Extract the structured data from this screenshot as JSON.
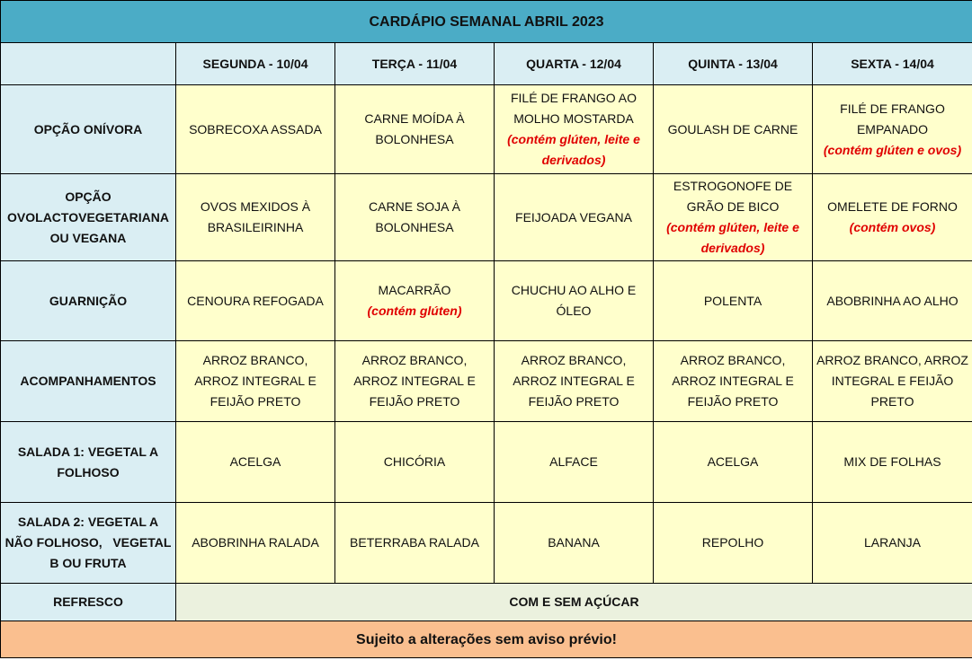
{
  "title": "CARDÁPIO SEMANAL ABRIL 2023",
  "days": [
    "SEGUNDA - 10/04",
    "TERÇA - 11/04",
    "QUARTA - 12/04",
    "QUINTA - 13/04",
    "SEXTA - 14/04"
  ],
  "rows": [
    {
      "label": "OPÇÃO ONÍVORA",
      "cells": [
        {
          "text": "SOBRECOXA ASSADA",
          "note": ""
        },
        {
          "text": "CARNE MOÍDA À BOLONHESA",
          "note": ""
        },
        {
          "text": "FILÉ DE FRANGO AO MOLHO MOSTARDA",
          "note": "(contém glúten, leite e derivados)"
        },
        {
          "text": "GOULASH DE CARNE",
          "note": ""
        },
        {
          "text": "FILÉ DE FRANGO EMPANADO",
          "note": "(contém glúten e ovos)"
        }
      ]
    },
    {
      "label": "OPÇÃO OVOLACTOVEGETARIANA OU VEGANA",
      "cells": [
        {
          "text": "OVOS MEXIDOS À BRASILEIRINHA",
          "note": ""
        },
        {
          "text": "CARNE SOJA À BOLONHESA",
          "note": ""
        },
        {
          "text": "FEIJOADA VEGANA",
          "note": ""
        },
        {
          "text": "ESTROGONOFE DE GRÃO DE BICO",
          "note": "(contém glúten, leite e derivados)"
        },
        {
          "text": "OMELETE DE FORNO",
          "note": "(contém ovos)"
        }
      ]
    },
    {
      "label": "GUARNIÇÃO",
      "cells": [
        {
          "text": "CENOURA REFOGADA",
          "note": ""
        },
        {
          "text": "MACARRÃO",
          "note": "(contém glúten)"
        },
        {
          "text": "CHUCHU AO ALHO E ÓLEO",
          "note": ""
        },
        {
          "text": "POLENTA",
          "note": ""
        },
        {
          "text": "ABOBRINHA AO ALHO",
          "note": ""
        }
      ]
    },
    {
      "label": "ACOMPANHAMENTOS",
      "cells": [
        {
          "text": "ARROZ BRANCO, ARROZ INTEGRAL E FEIJÃO PRETO",
          "note": ""
        },
        {
          "text": "ARROZ BRANCO, ARROZ INTEGRAL E FEIJÃO PRETO",
          "note": ""
        },
        {
          "text": "ARROZ BRANCO, ARROZ INTEGRAL E FEIJÃO PRETO",
          "note": ""
        },
        {
          "text": "ARROZ BRANCO, ARROZ INTEGRAL E FEIJÃO PRETO",
          "note": ""
        },
        {
          "text": "ARROZ BRANCO, ARROZ INTEGRAL E FEIJÃO PRETO",
          "note": ""
        }
      ]
    },
    {
      "label": "SALADA 1: VEGETAL A FOLHOSO",
      "cells": [
        {
          "text": "ACELGA",
          "note": ""
        },
        {
          "text": "CHICÓRIA",
          "note": ""
        },
        {
          "text": "ALFACE",
          "note": ""
        },
        {
          "text": "ACELGA",
          "note": ""
        },
        {
          "text": "MIX DE FOLHAS",
          "note": ""
        }
      ]
    },
    {
      "label": "SALADA 2: VEGETAL A NÃO FOLHOSO,   VEGETAL B OU FRUTA",
      "cells": [
        {
          "text": "ABOBRINHA RALADA",
          "note": ""
        },
        {
          "text": "BETERRABA RALADA",
          "note": ""
        },
        {
          "text": "BANANA",
          "note": ""
        },
        {
          "text": "REPOLHO",
          "note": ""
        },
        {
          "text": "LARANJA",
          "note": ""
        }
      ]
    }
  ],
  "refresco": {
    "label": "REFRESCO",
    "value": "COM E SEM AÇÚCAR"
  },
  "footer": "Sujeito a alterações sem aviso prévio!",
  "colors": {
    "title_bg": "#4BACC6",
    "label_bg": "#DAEEF3",
    "cell_bg": "#FFFFCC",
    "refresco_bg": "#EBF1DE",
    "footer_bg": "#FABF8F",
    "allergen_note": "#E00000"
  }
}
